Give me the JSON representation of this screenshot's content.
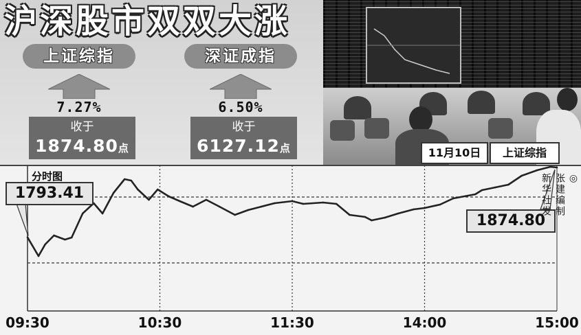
{
  "headline": "沪深股市双双大涨",
  "indices": [
    {
      "name": "上证综指",
      "change": "7.27%",
      "close_label": "收于",
      "close": "1874.80",
      "unit": "点"
    },
    {
      "name": "深证成指",
      "change": "6.50%",
      "close_label": "收于",
      "close": "6127.12",
      "unit": "点"
    }
  ],
  "photo_caption": {
    "date": "11月10日",
    "index": "上证综指"
  },
  "credit": {
    "symbol": "◎",
    "line1": "张建编制",
    "line2": "新华社发"
  },
  "colors": {
    "line": "#222222",
    "panel": "#d9d9d9",
    "box": "#6a6a6a"
  },
  "chart_data": {
    "type": "line",
    "title": "分时图",
    "xlabel": "",
    "ylabel": "",
    "x_ticks": [
      "09:30",
      "10:30",
      "11:30",
      "14:00",
      "15:00"
    ],
    "ylim": [
      1707.6,
      1877.2
    ],
    "grid": "dashed",
    "hlines": [
      1840.4,
      1763.6
    ],
    "annotations": [
      {
        "text": "1793.41",
        "time": "09:30",
        "value": 1793.41
      },
      {
        "text": "1874.80",
        "time": "15:00",
        "value": 1874.8
      }
    ],
    "series": [
      {
        "x": [
          "09:30",
          "09:35",
          "09:38",
          "09:42",
          "09:47",
          "09:50",
          "09:55",
          "10:00",
          "10:04",
          "10:09",
          "10:14",
          "10:17",
          "10:20",
          "10:25",
          "10:29",
          "10:34",
          "10:39",
          "10:45",
          "10:51",
          "10:57",
          "11:04",
          "11:10",
          "11:16",
          "11:22",
          "11:30",
          "13:05",
          "13:14",
          "13:20",
          "13:26",
          "13:33",
          "13:36",
          "13:42",
          "13:48",
          "13:55",
          "14:00",
          "14:07",
          "14:13",
          "14:23",
          "14:26",
          "14:32",
          "14:38",
          "14:44",
          "14:51",
          "14:57",
          "15:00"
        ],
        "y": [
          1793.41,
          1771.6,
          1785.2,
          1795.6,
          1790.8,
          1793.2,
          1821.2,
          1833.2,
          1821.2,
          1845.2,
          1861.2,
          1859.6,
          1849.2,
          1837.2,
          1849.2,
          1841.2,
          1835.6,
          1829.2,
          1837.2,
          1829.2,
          1819.6,
          1825.2,
          1829.2,
          1833.2,
          1835.6,
          1832.4,
          1834.0,
          1832.4,
          1819.6,
          1817.2,
          1813.2,
          1816.4,
          1821.2,
          1826.0,
          1827.6,
          1831.6,
          1838.8,
          1843.6,
          1848.4,
          1851.6,
          1854.8,
          1865.2,
          1871.6,
          1875.6,
          1874.8
        ]
      }
    ]
  }
}
